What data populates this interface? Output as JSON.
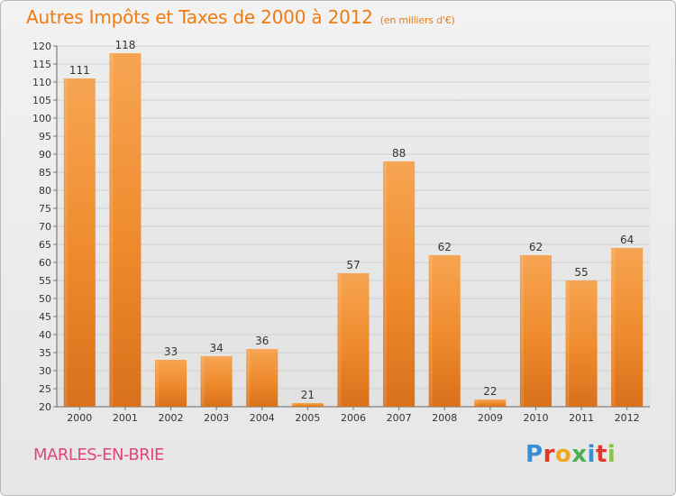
{
  "chart_data": {
    "type": "bar",
    "title": "Autres Impôts et Taxes de 2000 à 2012",
    "subtitle": "(en milliers d'€)",
    "categories": [
      "2000",
      "2001",
      "2002",
      "2003",
      "2004",
      "2005",
      "2006",
      "2007",
      "2008",
      "2009",
      "2010",
      "2011",
      "2012"
    ],
    "values": [
      111,
      118,
      33,
      34,
      36,
      21,
      57,
      88,
      62,
      22,
      62,
      55,
      64
    ],
    "ylim": [
      20,
      120
    ],
    "yticks": [
      20,
      25,
      30,
      35,
      40,
      45,
      50,
      55,
      60,
      65,
      70,
      75,
      80,
      85,
      90,
      95,
      100,
      105,
      110,
      115,
      120
    ],
    "grid": true,
    "bar_color": "#f0922e"
  },
  "footer": {
    "place_name": "MARLES-EN-BRIE",
    "logo_text": "Proxiti"
  }
}
